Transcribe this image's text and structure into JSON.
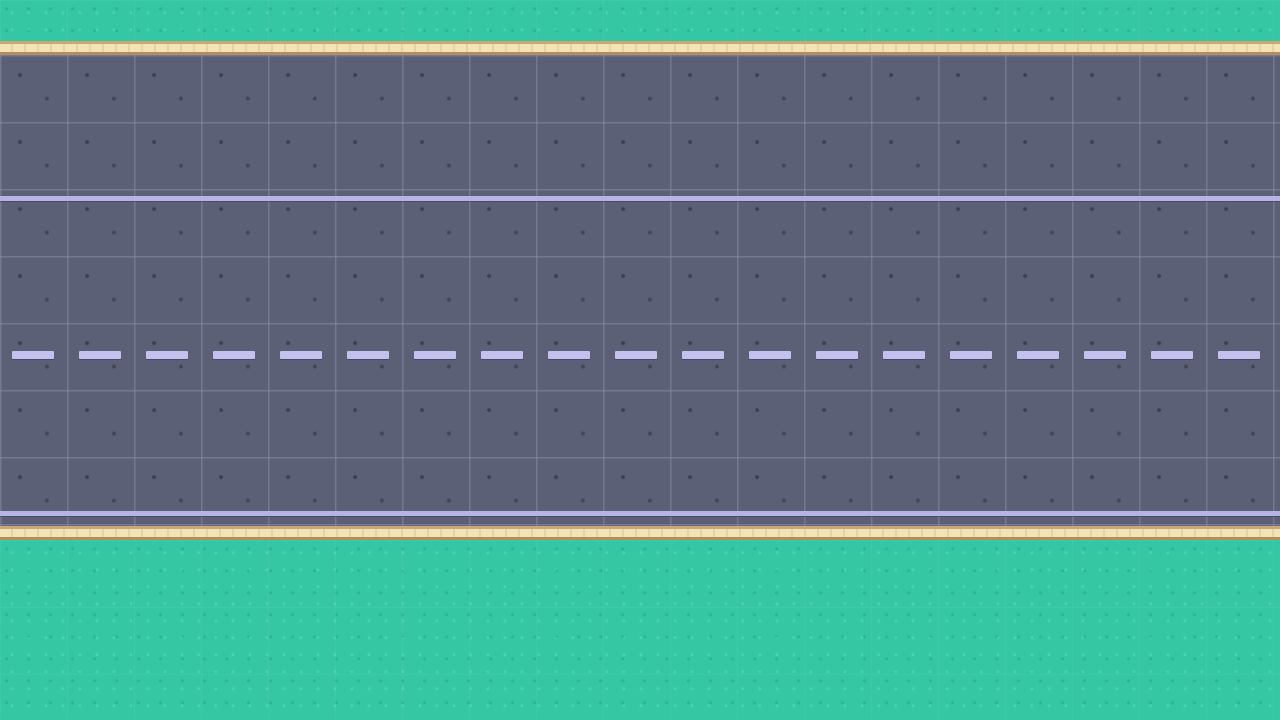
{
  "scene": {
    "type": "top-down road tile map",
    "colors": {
      "grass": "#35c6a3",
      "asphalt": "#5c6076",
      "lane_line": "#b7b3e3",
      "center_dash": "#c4c1ee",
      "curb": "#f3e4b8",
      "curb_edge": "#b48c5d"
    },
    "center_dash_count": 19
  }
}
